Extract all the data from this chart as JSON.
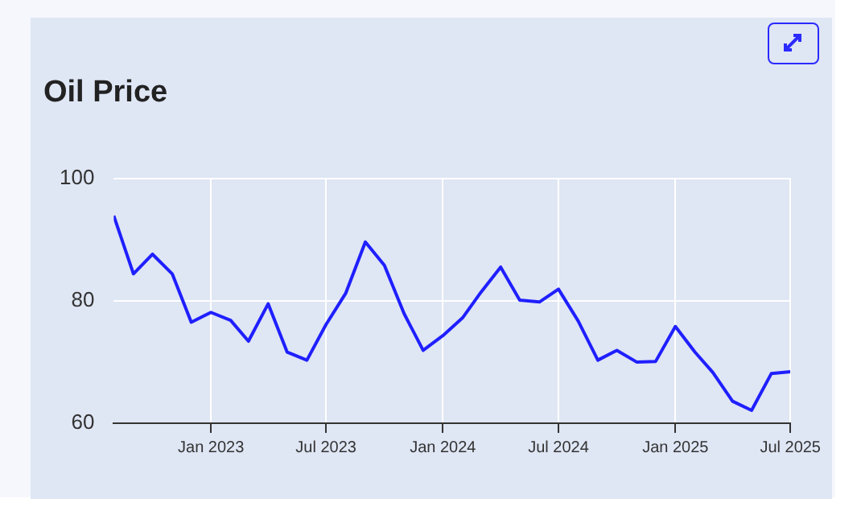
{
  "chart_data": {
    "type": "line",
    "title": "Oil Price",
    "x": [
      "2022-08",
      "2022-09",
      "2022-10",
      "2022-11",
      "2022-12",
      "2023-01",
      "2023-02",
      "2023-03",
      "2023-04",
      "2023-05",
      "2023-06",
      "2023-07",
      "2023-08",
      "2023-09",
      "2023-10",
      "2023-11",
      "2023-12",
      "2024-01",
      "2024-02",
      "2024-03",
      "2024-04",
      "2024-05",
      "2024-06",
      "2024-07",
      "2024-08",
      "2024-09",
      "2024-10",
      "2024-11",
      "2024-12",
      "2025-01",
      "2025-02",
      "2025-03",
      "2025-04",
      "2025-05",
      "2025-06",
      "2025-07"
    ],
    "series": [
      {
        "color": "#1f1fff",
        "values": [
          93.9,
          84.4,
          87.6,
          84.4,
          76.5,
          78.1,
          76.8,
          73.4,
          79.5,
          71.6,
          70.3,
          76.1,
          81.2,
          89.6,
          85.8,
          77.9,
          71.9,
          74.3,
          77.2,
          81.4,
          85.5,
          80.1,
          79.8,
          81.9,
          76.7,
          70.3,
          71.9,
          70.0,
          70.1,
          75.8,
          71.6,
          68.3,
          63.6,
          62.1,
          68.1,
          68.4
        ]
      }
    ],
    "xlim": [
      "2022-08",
      "2025-07"
    ],
    "xticks": [
      {
        "value": "2023-01",
        "label": "Jan 2023"
      },
      {
        "value": "2023-07",
        "label": "Jul 2023"
      },
      {
        "value": "2024-01",
        "label": "Jan 2024"
      },
      {
        "value": "2024-07",
        "label": "Jul 2024"
      },
      {
        "value": "2025-01",
        "label": "Jan 2025"
      },
      {
        "value": "2025-07",
        "label": "Jul 2025"
      }
    ],
    "ylim": [
      60,
      100
    ],
    "yticks": [
      60,
      80,
      100
    ],
    "grid": true,
    "legend": false,
    "marker": "none",
    "line_style": "solid"
  }
}
